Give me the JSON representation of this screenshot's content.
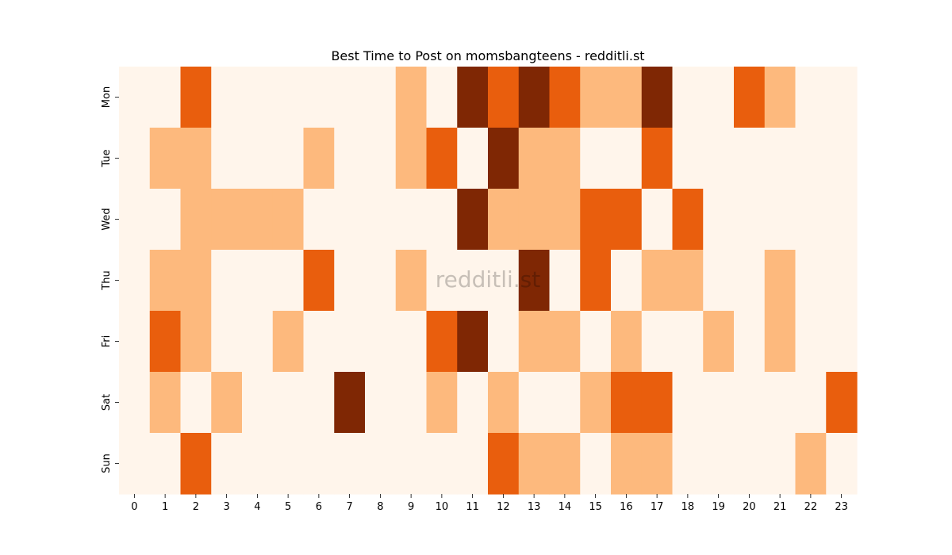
{
  "chart_data": {
    "type": "heatmap",
    "title": "Best Time to Post on momsbangteens - redditli.st",
    "watermark": "redditli.st",
    "x_categories": [
      "0",
      "1",
      "2",
      "3",
      "4",
      "5",
      "6",
      "7",
      "8",
      "9",
      "10",
      "11",
      "12",
      "13",
      "14",
      "15",
      "16",
      "17",
      "18",
      "19",
      "20",
      "21",
      "22",
      "23"
    ],
    "y_categories": [
      "Mon",
      "Tue",
      "Wed",
      "Thu",
      "Fri",
      "Sat",
      "Sun"
    ],
    "value_scale": [
      0,
      3
    ],
    "colorscale": [
      "#fff5eb",
      "#fdb97d",
      "#e95e0d",
      "#7f2704"
    ],
    "values": [
      [
        0,
        0,
        2,
        0,
        0,
        0,
        0,
        0,
        0,
        1,
        0,
        3,
        2,
        3,
        2,
        1,
        1,
        3,
        0,
        0,
        2,
        1,
        0,
        0
      ],
      [
        0,
        1,
        1,
        0,
        0,
        0,
        1,
        0,
        0,
        1,
        2,
        0,
        3,
        1,
        1,
        0,
        0,
        2,
        0,
        0,
        0,
        0,
        0,
        0
      ],
      [
        0,
        0,
        1,
        1,
        1,
        1,
        0,
        0,
        0,
        0,
        0,
        3,
        1,
        1,
        1,
        2,
        2,
        0,
        2,
        0,
        0,
        0,
        0,
        0
      ],
      [
        0,
        1,
        1,
        0,
        0,
        0,
        2,
        0,
        0,
        1,
        0,
        0,
        0,
        3,
        0,
        2,
        0,
        1,
        1,
        0,
        0,
        1,
        0,
        0
      ],
      [
        0,
        2,
        1,
        0,
        0,
        1,
        0,
        0,
        0,
        0,
        2,
        3,
        0,
        1,
        1,
        0,
        1,
        0,
        0,
        1,
        0,
        1,
        0,
        0
      ],
      [
        0,
        1,
        0,
        1,
        0,
        0,
        0,
        3,
        0,
        0,
        1,
        0,
        1,
        0,
        0,
        1,
        2,
        2,
        0,
        0,
        0,
        0,
        0,
        2
      ],
      [
        0,
        0,
        2,
        0,
        0,
        0,
        0,
        0,
        0,
        0,
        0,
        0,
        2,
        1,
        1,
        0,
        1,
        1,
        0,
        0,
        0,
        0,
        1,
        0
      ]
    ],
    "legend": "none",
    "grid": false
  }
}
